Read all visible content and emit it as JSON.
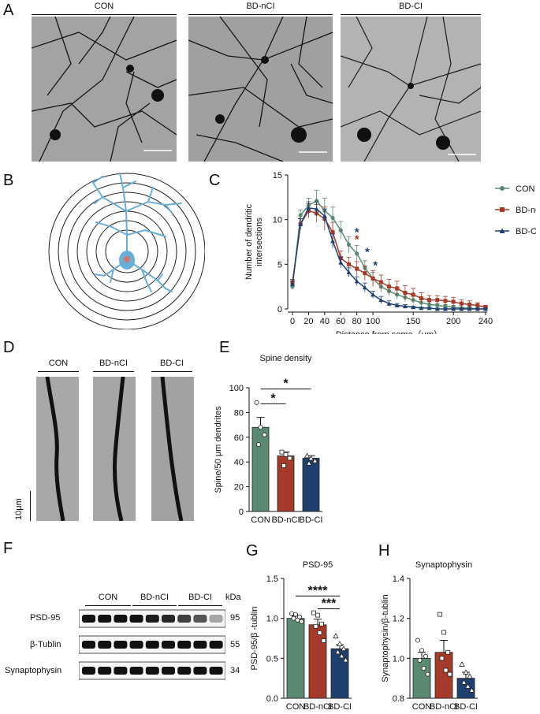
{
  "panels": {
    "A": {
      "label": "A",
      "groups": [
        "CON",
        "BD-nCI",
        "BD-CI"
      ]
    },
    "B": {
      "label": "B"
    },
    "C": {
      "label": "C"
    },
    "D": {
      "label": "D",
      "groups": [
        "CON",
        "BD-nCI",
        "BD-CI"
      ],
      "scale": "10μm"
    },
    "E": {
      "label": "E"
    },
    "F": {
      "label": "F",
      "groups": [
        "CON",
        "BD-nCI",
        "BD-CI"
      ],
      "kda_header": "kDa",
      "rows": [
        {
          "name": "PSD-95",
          "kda": "95"
        },
        {
          "name": "β-Tublin",
          "kda": "55"
        },
        {
          "name": "Synaptophysin",
          "kda": "34"
        }
      ]
    },
    "G": {
      "label": "G"
    },
    "H": {
      "label": "H"
    }
  },
  "colors": {
    "CON": "#5b8a72",
    "BD-nCI": "#a33a2a",
    "BD-CI": "#1f3f6e"
  },
  "chart_data": [
    {
      "id": "C",
      "type": "line",
      "xlabel": "Distance from soma（μm）",
      "ylabel": "Number of dendritic intersections",
      "ylabel_lines": [
        "Number of dendritic",
        "intersections"
      ],
      "xlim": [
        0,
        240
      ],
      "ylim": [
        0,
        15
      ],
      "xticks": [
        "0",
        "20",
        "40",
        "60",
        "80",
        "100",
        "150",
        "200",
        "240"
      ],
      "xtick_values": [
        0,
        20,
        40,
        60,
        80,
        100,
        150,
        200,
        240
      ],
      "yticks": [
        "0",
        "5",
        "10",
        "15"
      ],
      "x": [
        0,
        10,
        20,
        30,
        40,
        50,
        60,
        70,
        80,
        90,
        100,
        110,
        120,
        130,
        140,
        150,
        160,
        170,
        180,
        190,
        200,
        210,
        220,
        230,
        240
      ],
      "series": [
        {
          "name": "CON",
          "values": [
            2.5,
            10.5,
            11.6,
            12.1,
            11.0,
            10.2,
            8.8,
            7.2,
            6.2,
            4.6,
            3.4,
            2.5,
            2.0,
            1.6,
            1.3,
            1.0,
            0.7,
            0.5,
            0.4,
            0.3,
            0.2,
            0.1,
            0.1,
            0.0,
            0.0
          ]
        },
        {
          "name": "BD-nCI",
          "values": [
            3.0,
            9.5,
            11.0,
            10.7,
            10.1,
            8.6,
            5.7,
            5.0,
            4.5,
            4.0,
            3.4,
            3.0,
            2.5,
            2.3,
            1.8,
            1.6,
            1.2,
            1.0,
            1.0,
            0.9,
            0.8,
            0.6,
            0.5,
            0.4,
            0.2
          ]
        },
        {
          "name": "BD-CI",
          "values": [
            2.8,
            9.5,
            11.3,
            11.2,
            10.4,
            7.6,
            5.2,
            4.1,
            3.1,
            2.4,
            1.6,
            1.0,
            0.6,
            0.4,
            0.3,
            0.2,
            0.1,
            0.1,
            0.0,
            0.0,
            0.0,
            0.0,
            0.0,
            0.0,
            0.0
          ]
        }
      ],
      "errors": [
        [
          0.3,
          0.6,
          0.8,
          1.2,
          1.4,
          1.2,
          1.0,
          0.9,
          0.9,
          0.8,
          0.7,
          0.6,
          0.5,
          0.5,
          0.5,
          0.4,
          0.3,
          0.3,
          0.2,
          0.2,
          0.2,
          0.1,
          0.1,
          0.1,
          0.1
        ],
        [
          0.3,
          0.6,
          0.8,
          1.0,
          1.3,
          1.1,
          0.8,
          0.8,
          0.8,
          0.8,
          0.9,
          0.8,
          0.8,
          0.8,
          0.8,
          0.7,
          0.6,
          0.5,
          0.5,
          0.5,
          0.5,
          0.4,
          0.4,
          0.3,
          0.2
        ],
        [
          0.3,
          0.6,
          0.7,
          0.8,
          0.8,
          0.8,
          0.6,
          0.5,
          0.5,
          0.5,
          0.4,
          0.4,
          0.3,
          0.2,
          0.2,
          0.1,
          0.1,
          0.1,
          0.1,
          0.1,
          0.1,
          0.1,
          0.1,
          0.1,
          0.1
        ]
      ],
      "significance": [
        {
          "x": 80,
          "y": 8.6,
          "text": "*",
          "color": "BD-CI"
        },
        {
          "x": 80,
          "y": 7.8,
          "text": "*",
          "color": "BD-nCI"
        },
        {
          "x": 93,
          "y": 6.4,
          "text": "*",
          "color": "BD-CI"
        },
        {
          "x": 103,
          "y": 4.9,
          "text": "*",
          "color": "BD-CI"
        }
      ],
      "legend": "right",
      "legend_entries": [
        "CON",
        "BD-nCI",
        "BD-CI"
      ]
    },
    {
      "id": "E",
      "type": "bar",
      "title": "Spine density",
      "ylabel": "Spine/50 μm dendrites",
      "categories": [
        "CON",
        "BD-nCI",
        "BD-CI"
      ],
      "values": [
        68,
        45,
        43
      ],
      "errors": [
        8,
        3,
        2
      ],
      "points": [
        [
          88,
          68,
          62,
          54
        ],
        [
          48,
          46,
          43,
          37
        ],
        [
          45,
          43,
          41,
          39
        ]
      ],
      "ylim": [
        0,
        100
      ],
      "yticks": [
        "0",
        "20",
        "40",
        "60",
        "80",
        "100"
      ],
      "ytick_values": [
        0,
        20,
        40,
        60,
        80,
        100
      ],
      "brackets": [
        {
          "from": 0,
          "to": 1,
          "y": 87,
          "text": "*"
        },
        {
          "from": 0,
          "to": 2,
          "y": 99,
          "text": "*"
        }
      ]
    },
    {
      "id": "G",
      "type": "bar",
      "title": "PSD-95",
      "ylabel": "PSD-95/β -tublin",
      "categories": [
        "CON",
        "BD-nCI",
        "BD-CI"
      ],
      "values": [
        1.0,
        0.92,
        0.62
      ],
      "errors": [
        0.03,
        0.07,
        0.05
      ],
      "points": [
        [
          1.06,
          1.05,
          1.02,
          1.0,
          0.98,
          0.96
        ],
        [
          1.07,
          1.04,
          0.93,
          0.9,
          0.82,
          0.72
        ],
        [
          0.78,
          0.68,
          0.62,
          0.58,
          0.53,
          0.48
        ]
      ],
      "ylim": [
        0,
        1.5
      ],
      "yticks": [
        "0.0",
        "0.5",
        "1.0",
        "1.5"
      ],
      "ytick_values": [
        0,
        0.5,
        1.0,
        1.5
      ],
      "brackets": [
        {
          "from": 1,
          "to": 2,
          "y": 1.12,
          "text": "***"
        },
        {
          "from": 0,
          "to": 2,
          "y": 1.28,
          "text": "****"
        }
      ]
    },
    {
      "id": "H",
      "type": "bar",
      "title": "Synaptophysin",
      "ylabel": "Synaptophysin/β-tublin",
      "categories": [
        "CON",
        "BD-nCI",
        "BD-CI"
      ],
      "values": [
        1.0,
        1.03,
        0.9
      ],
      "errors": [
        0.03,
        0.06,
        0.03
      ],
      "points": [
        [
          1.09,
          1.04,
          1.01,
          0.99,
          0.95,
          0.92
        ],
        [
          1.22,
          1.13,
          1.03,
          1.0,
          0.94,
          0.92
        ],
        [
          0.97,
          0.93,
          0.91,
          0.88,
          0.86,
          0.84
        ]
      ],
      "ylim": [
        0.8,
        1.4
      ],
      "yticks": [
        "0.8",
        "1.0",
        "1.2",
        "1.4"
      ],
      "ytick_values": [
        0.8,
        1.0,
        1.2,
        1.4
      ]
    }
  ]
}
